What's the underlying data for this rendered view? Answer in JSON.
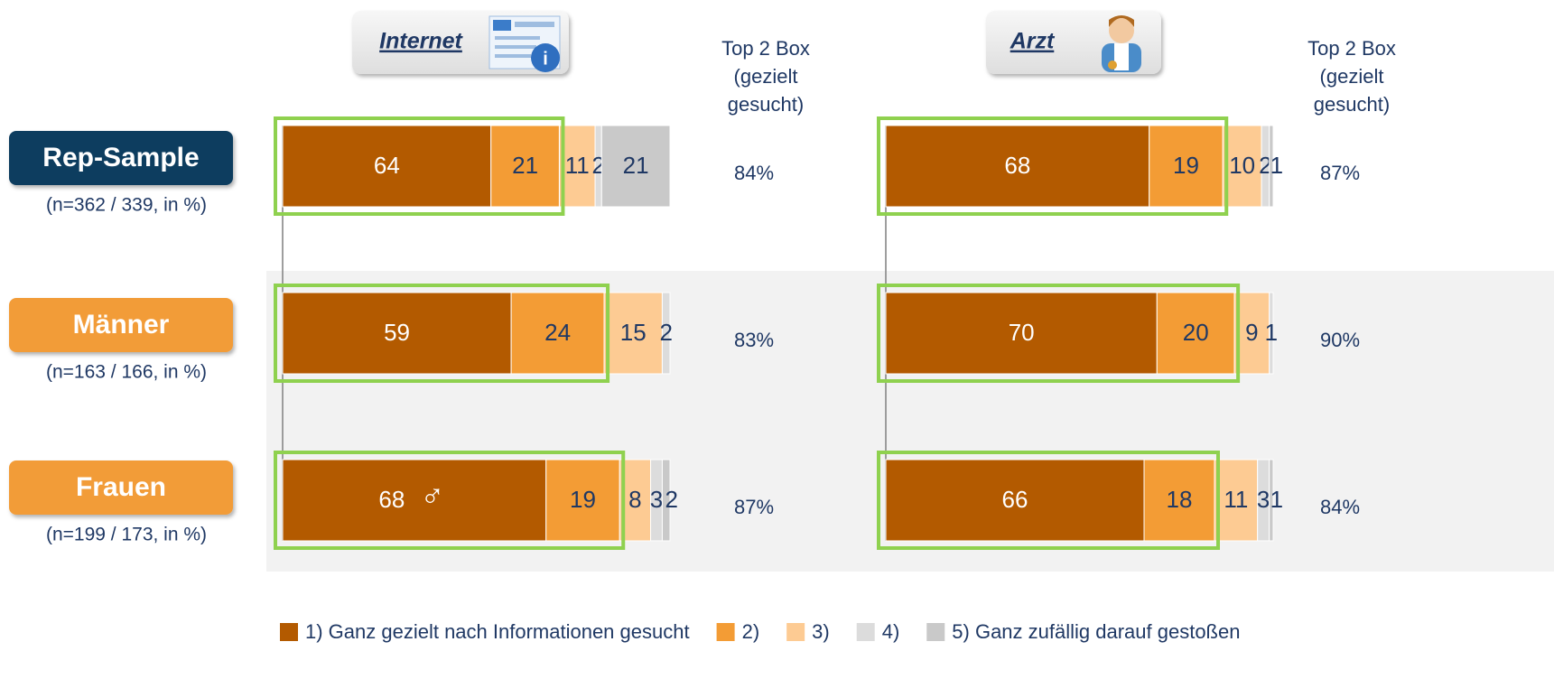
{
  "row_labels": [
    "Rep-Sample",
    "Männer",
    "Frauen"
  ],
  "row_samples": [
    "(n=362 / 339, in %)",
    "(n=163 / 166, in %)",
    "(n=199 / 173, in %)"
  ],
  "legend": [
    {
      "name": "1) Ganz gezielt nach Informationen gesucht",
      "color": "#b35a00"
    },
    {
      "name": "2)",
      "color": "#f39c35"
    },
    {
      "name": "3)",
      "color": "#fdcb93"
    },
    {
      "name": "4)",
      "color": "#dcdcdc"
    },
    {
      "name": "5) Ganz zufällig darauf gestoßen",
      "color": "#c9c9c9"
    }
  ],
  "chart_data": [
    {
      "type": "bar",
      "title": "Internet",
      "top2_header": [
        "Top 2 Box",
        "(gezielt",
        "gesucht)"
      ],
      "top2": [
        "84%",
        "83%",
        "87%"
      ],
      "annotation": "♂",
      "series": [
        {
          "values": [
            64,
            59,
            68
          ]
        },
        {
          "values": [
            21,
            24,
            19
          ]
        },
        {
          "values": [
            11,
            15,
            8
          ]
        },
        {
          "values": [
            2,
            2,
            3
          ]
        },
        {
          "values": [
            21,
            null,
            2
          ]
        }
      ]
    },
    {
      "type": "bar",
      "title": "Arzt",
      "top2_header": [
        "Top 2 Box",
        "(gezielt",
        "gesucht)"
      ],
      "top2": [
        "87%",
        "90%",
        "84%"
      ],
      "series": [
        {
          "values": [
            68,
            70,
            66
          ]
        },
        {
          "values": [
            19,
            20,
            18
          ]
        },
        {
          "values": [
            10,
            9,
            11
          ]
        },
        {
          "values": [
            2,
            1,
            3
          ]
        },
        {
          "values": [
            1,
            null,
            1
          ]
        }
      ]
    }
  ]
}
